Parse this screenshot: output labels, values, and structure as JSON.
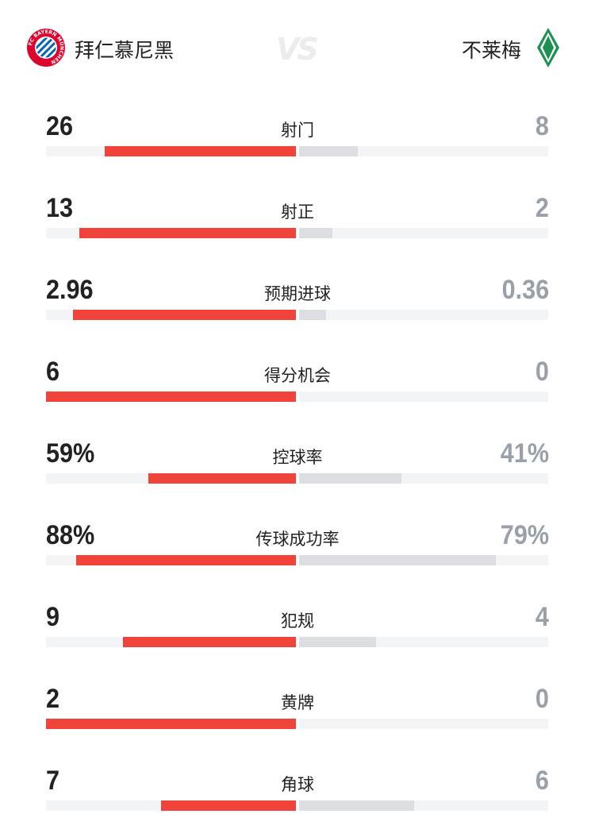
{
  "header": {
    "home_team": "拜仁慕尼黑",
    "away_team": "不莱梅",
    "vs": "VS",
    "home_logo_text": "FC BAYERN MÜNCHEN"
  },
  "colors": {
    "home_bar": "#f0443a",
    "away_bar": "#dcdee2",
    "track": "#f3f4f6"
  },
  "stats": [
    {
      "label": "射门",
      "home": "26",
      "away": "8",
      "home_value": 26,
      "away_value": 8
    },
    {
      "label": "射正",
      "home": "13",
      "away": "2",
      "home_value": 13,
      "away_value": 2
    },
    {
      "label": "预期进球",
      "home": "2.96",
      "away": "0.36",
      "home_value": 2.96,
      "away_value": 0.36
    },
    {
      "label": "得分机会",
      "home": "6",
      "away": "0",
      "home_value": 6,
      "away_value": 0
    },
    {
      "label": "控球率",
      "home": "59%",
      "away": "41%",
      "home_value": 59,
      "away_value": 41
    },
    {
      "label": "传球成功率",
      "home": "88%",
      "away": "79%",
      "home_value": 88,
      "away_value": 79
    },
    {
      "label": "犯规",
      "home": "9",
      "away": "4",
      "home_value": 9,
      "away_value": 4
    },
    {
      "label": "黄牌",
      "home": "2",
      "away": "0",
      "home_value": 2,
      "away_value": 0
    },
    {
      "label": "角球",
      "home": "7",
      "away": "6",
      "home_value": 7,
      "away_value": 6
    }
  ]
}
